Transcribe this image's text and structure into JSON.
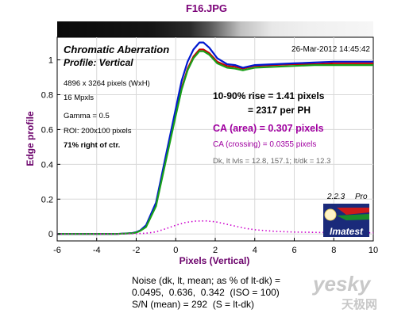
{
  "page_title": "F16.JPG",
  "header": {
    "title": "Chromatic Aberration",
    "subtitle": "Profile: Vertical",
    "date": "26-Mar-2012 14:45:42"
  },
  "info": {
    "line1": "4896 x 3264 pixels (WxH)",
    "line2": "16 Mpxls",
    "line3": "Gamma = 0.5",
    "line4": "ROI: 200x100 pixels",
    "line5": "71% right of ctr."
  },
  "measure": {
    "rise": "10-90% rise = 1.41 pixels",
    "per_ph": "= 2317 per PH",
    "ca_area": "CA (area) = 0.307 pixels",
    "ca_crossing": "CA (crossing) = 0.0355 pixels",
    "levels": "Dk, lt lvls = 12.8, 157.1;  lt/dk = 12.3"
  },
  "badge": {
    "version": "2.2.3",
    "edition": "Pro",
    "brand": "Imatest"
  },
  "noise": {
    "line1": "Noise (dk, lt, mean; as % of lt-dk) =",
    "line2": "0.0495,  0.636,  0.342  (ISO = 100)",
    "line3": "S/N (mean) = 292  (S = lt-dk)"
  },
  "watermark": {
    "brand": "yesky",
    "sub": "天极网"
  },
  "colors": {
    "title": "#7a0077",
    "blue": "#0018d0",
    "red": "#c80000",
    "green": "#18a018",
    "magenta": "#cc00cc",
    "purple_text": "#a000a0"
  },
  "chart_data": {
    "type": "line",
    "xlabel": "Pixels (Vertical)",
    "ylabel": "Edge profile",
    "xlim": [
      -6,
      10
    ],
    "ylim": [
      -0.04,
      1.13
    ],
    "xticks": [
      -6,
      -4,
      -2,
      0,
      2,
      4,
      6,
      8,
      10
    ],
    "yticks": [
      0,
      0.2,
      0.4,
      0.6,
      0.8,
      1
    ],
    "ytick_labels": [
      "0",
      "0.2",
      "0.4",
      "0.6",
      "0.8",
      "1"
    ],
    "grid": true,
    "series": [
      {
        "color": "blue",
        "x": [
          -6,
          -4,
          -3,
          -2.2,
          -2,
          -1.8,
          -1.5,
          -1,
          -0.5,
          0,
          0.3,
          0.6,
          0.9,
          1.2,
          1.4,
          1.7,
          2.1,
          2.6,
          3,
          3.4,
          3.6,
          4,
          5,
          6,
          7,
          8,
          9,
          10
        ],
        "y": [
          0,
          0,
          0,
          0.005,
          0.01,
          0.02,
          0.05,
          0.18,
          0.45,
          0.72,
          0.88,
          0.99,
          1.06,
          1.1,
          1.1,
          1.07,
          1.01,
          0.975,
          0.97,
          0.955,
          0.96,
          0.97,
          0.975,
          0.98,
          0.985,
          0.99,
          0.99,
          0.99
        ]
      },
      {
        "color": "red",
        "x": [
          -6,
          -4,
          -3,
          -2.2,
          -2,
          -1.8,
          -1.5,
          -1,
          -0.5,
          0,
          0.3,
          0.6,
          0.9,
          1.2,
          1.4,
          1.7,
          2.1,
          2.6,
          3,
          3.4,
          3.6,
          4,
          5,
          6,
          7,
          8,
          9,
          10
        ],
        "y": [
          0,
          0,
          0,
          0.005,
          0.01,
          0.02,
          0.045,
          0.17,
          0.43,
          0.69,
          0.84,
          0.95,
          1.02,
          1.06,
          1.06,
          1.04,
          0.99,
          0.965,
          0.96,
          0.95,
          0.955,
          0.965,
          0.97,
          0.975,
          0.975,
          0.98,
          0.98,
          0.98
        ]
      },
      {
        "color": "green",
        "x": [
          -6,
          -4,
          -3,
          -2.2,
          -2,
          -1.8,
          -1.5,
          -1,
          -0.5,
          0,
          0.3,
          0.6,
          0.9,
          1.2,
          1.4,
          1.7,
          2.1,
          2.6,
          3,
          3.4,
          3.6,
          4,
          5,
          6,
          7,
          8,
          9,
          10
        ],
        "y": [
          0,
          0,
          0,
          0.004,
          0.008,
          0.018,
          0.04,
          0.16,
          0.42,
          0.68,
          0.83,
          0.94,
          1.01,
          1.05,
          1.05,
          1.03,
          0.98,
          0.955,
          0.95,
          0.94,
          0.945,
          0.955,
          0.96,
          0.965,
          0.97,
          0.97,
          0.97,
          0.97
        ]
      },
      {
        "color": "magenta-dotted",
        "x": [
          -6,
          -3,
          -2,
          -1.5,
          -1,
          -0.5,
          0,
          0.5,
          1,
          1.5,
          2,
          2.5,
          3,
          3.5,
          4,
          5,
          6,
          7,
          8,
          9,
          10
        ],
        "y": [
          0,
          0,
          0.002,
          0.004,
          0.012,
          0.03,
          0.05,
          0.066,
          0.074,
          0.075,
          0.07,
          0.058,
          0.045,
          0.033,
          0.024,
          0.015,
          0.011,
          0.009,
          0.008,
          0.007,
          0.007
        ]
      }
    ]
  }
}
